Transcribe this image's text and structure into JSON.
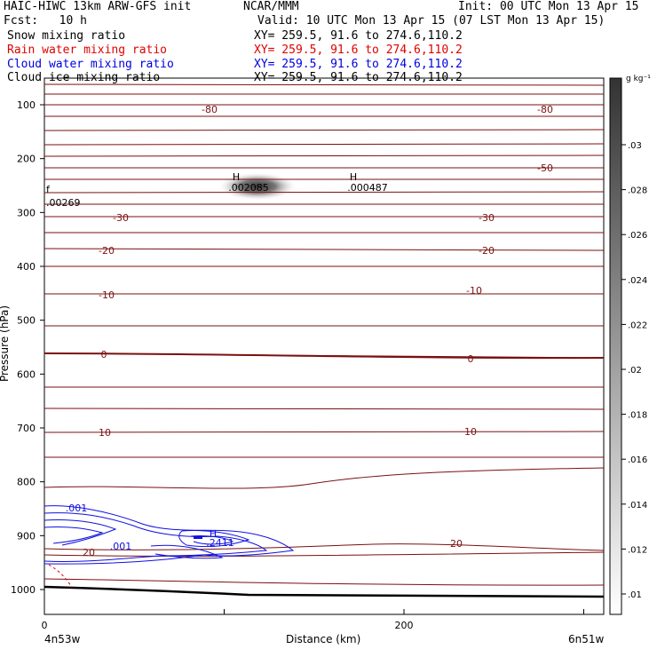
{
  "header": {
    "title_left": "HAIC-HIWC 13km ARW-GFS init",
    "title_center": "NCAR/MMM",
    "init": "Init: 00 UTC Mon 13 Apr 15",
    "fcst": "Fcst:   10 h",
    "valid": "Valid: 10 UTC Mon 13 Apr 15 (07 LST Mon 13 Apr 15)"
  },
  "fields": [
    {
      "label": "Snow mixing ratio",
      "xy": "XY= 259.5, 91.6 to 274.6,110.2",
      "color": "#000000"
    },
    {
      "label": "Rain water mixing ratio",
      "xy": "XY= 259.5, 91.6 to 274.6,110.2",
      "color": "#e00000"
    },
    {
      "label": "Cloud water mixing ratio",
      "xy": "XY= 259.5, 91.6 to 274.6,110.2",
      "color": "#0000e0"
    },
    {
      "label": "Cloud ice mixing ratio",
      "xy": "XY= 259.5, 91.6 to 274.6,110.2",
      "color": "#000000"
    }
  ],
  "axes": {
    "ylabel": "Pressure (hPa)",
    "xlabel": "Distance (km)",
    "left_location": "4n53w",
    "right_location": "6n51w"
  },
  "colorbar": {
    "unit": "g kg⁻¹",
    "ticks": [
      ".03",
      ".028",
      ".026",
      ".024",
      ".022",
      ".02",
      ".018",
      ".016",
      ".014",
      ".012",
      ".01"
    ]
  },
  "chart_data": {
    "type": "contour",
    "x_range": [
      0,
      310
    ],
    "xticks": [
      0,
      200
    ],
    "y_range": [
      1050,
      60
    ],
    "yticks": [
      100,
      200,
      300,
      400,
      500,
      600,
      700,
      800,
      900,
      1000
    ],
    "temperature_contour_labels": [
      "-80",
      "-50",
      "-30",
      "-20",
      "-10",
      "0",
      "10",
      "20"
    ],
    "markers": [
      {
        "symbol": "H",
        "value": ".002085"
      },
      {
        "symbol": "H",
        "value": ".000487"
      },
      {
        "symbol": "H",
        "value": ".2411"
      }
    ],
    "misc_labels": [
      ".00269",
      ".001",
      ".001",
      "20"
    ]
  }
}
